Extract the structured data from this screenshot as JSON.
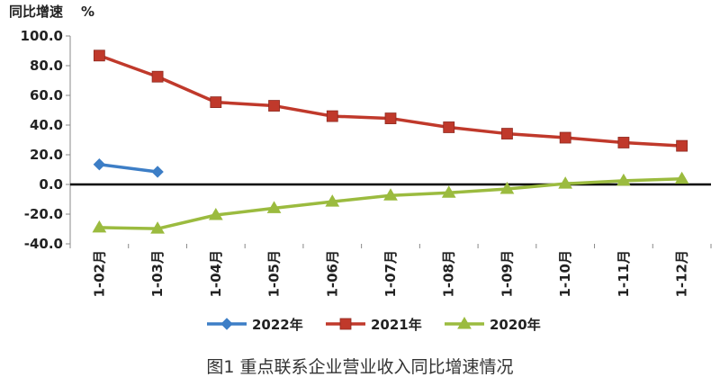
{
  "chart_data": {
    "type": "line",
    "ylabel": "同比增速",
    "ylabel_unit": "%",
    "caption": "图1  重点联系企业营业收入同比增速情况",
    "ylim": [
      -40,
      100
    ],
    "y_ticks": [
      "100.0",
      "80.0",
      "60.0",
      "40.0",
      "20.0",
      "0.0",
      "-20.0",
      "-40.0"
    ],
    "y_tick_values": [
      100,
      80,
      60,
      40,
      20,
      0,
      -20,
      -40
    ],
    "categories": [
      "1-02月",
      "1-03月",
      "1-04月",
      "1-05月",
      "1-06月",
      "1-07月",
      "1-08月",
      "1-09月",
      "1-10月",
      "1-11月",
      "1-12月"
    ],
    "series": [
      {
        "name": "2022年",
        "color": "#3d7ec6",
        "marker": "diamond",
        "values": [
          13.5,
          8.5,
          null,
          null,
          null,
          null,
          null,
          null,
          null,
          null,
          null
        ]
      },
      {
        "name": "2021年",
        "color": "#c0392b",
        "marker": "square",
        "values": [
          86.8,
          72.6,
          55.4,
          53.0,
          46.0,
          44.5,
          38.5,
          34.2,
          31.5,
          28.2,
          26.0
        ]
      },
      {
        "name": "2020年",
        "color": "#9bbb3f",
        "marker": "triangle",
        "values": [
          -29.0,
          -29.8,
          -20.6,
          -16.0,
          -11.6,
          -7.4,
          -5.6,
          -3.0,
          0.5,
          2.5,
          3.8
        ]
      }
    ],
    "grid": false,
    "legend": "bottom"
  }
}
